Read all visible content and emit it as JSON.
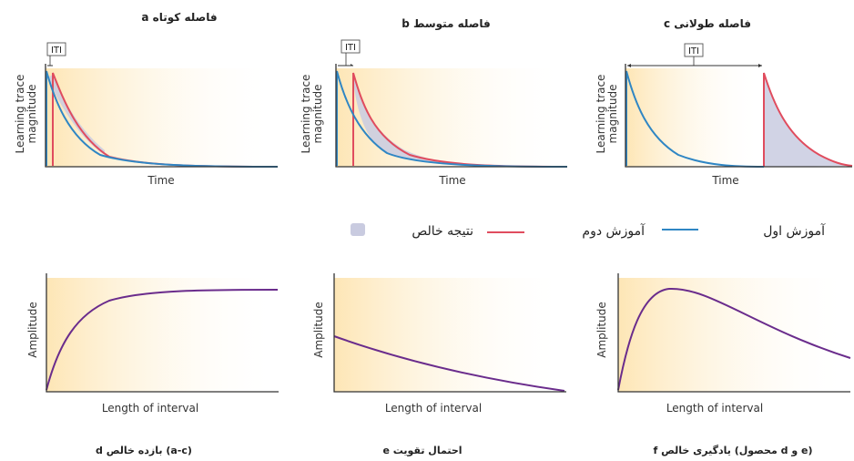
{
  "colors": {
    "first_learning": "#2f86c4",
    "second_learning": "#e04c5e",
    "net_result": "#c9cbe0",
    "amplitude_curve": "#6a2c8c",
    "background_fill_top": "#fff1d9",
    "background_fill_bottom": "#fde7b6"
  },
  "top_panels": [
    {
      "title": "a فاصله کوتاه",
      "ylabel_line1": "Learning trace",
      "ylabel_line2": "magnitude",
      "xlabel": "Time",
      "iti": "ITI",
      "interval": "short"
    },
    {
      "title": "b فاصله متوسط",
      "ylabel_line1": "Learning trace",
      "ylabel_line2": "magnitude",
      "xlabel": "Time",
      "iti": "ITI",
      "interval": "medium"
    },
    {
      "title": "c فاصله طولانی",
      "ylabel_line1": "Learning trace",
      "ylabel_line2": "magnitude",
      "xlabel": "Time",
      "iti": "ITI",
      "interval": "long"
    }
  ],
  "legend": {
    "first": "آموزش اول",
    "second": "آموزش دوم",
    "net": "نتیجه خالص"
  },
  "bottom_panels": [
    {
      "ylabel": "Amplitude",
      "xlabel": "Length of interval",
      "caption": "d بازده خالص (a-c)",
      "shape": "rising-saturating"
    },
    {
      "ylabel": "Amplitude",
      "xlabel": "Length of interval",
      "caption": "e احتمال تقویت",
      "shape": "decaying"
    },
    {
      "ylabel": "Amplitude",
      "xlabel": "Length of interval",
      "caption": "f یادگیری خالص (محصول d و e)",
      "shape": "rise-then-decay"
    }
  ]
}
